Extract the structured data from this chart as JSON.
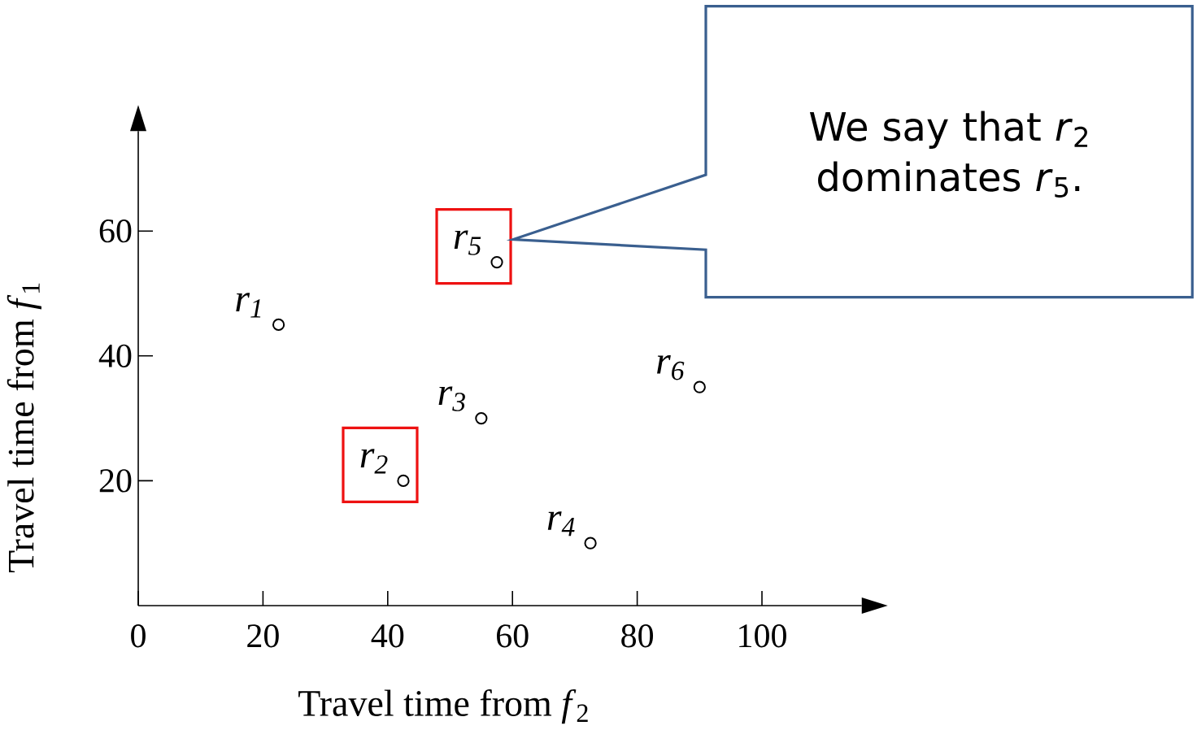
{
  "chart_data": {
    "type": "scatter",
    "xlabel": "Travel time from *f*$_{2}$",
    "ylabel": "Travel time from *f*$_{1}$",
    "x": [
      22.5,
      42.5,
      55,
      72.5,
      57.5,
      90
    ],
    "values": [
      45,
      20,
      30,
      10,
      55,
      35
    ],
    "color": "#000000",
    "marker": "circle",
    "xlim": [
      0,
      116
    ],
    "ylim": [
      0,
      76
    ],
    "xticks": [
      0,
      20,
      40,
      60,
      80,
      100
    ],
    "yticks": [
      20,
      40,
      60
    ],
    "annotations": [
      {
        "text": "r$_{1}$",
        "x": 22.5,
        "y": 45
      },
      {
        "text": "r$_{2}$",
        "x": 42.5,
        "y": 20
      },
      {
        "text": "r$_{3}$",
        "x": 55,
        "y": 30
      },
      {
        "text": "r$_{4}$",
        "x": 72.5,
        "y": 10
      },
      {
        "text": "r$_{5}$",
        "x": 57.5,
        "y": 55
      },
      {
        "text": "r$_{6}$",
        "x": 90,
        "y": 35
      },
      "We say that *r*$_{2}$ dominates *r*$_{5}$."
    ]
  }
}
